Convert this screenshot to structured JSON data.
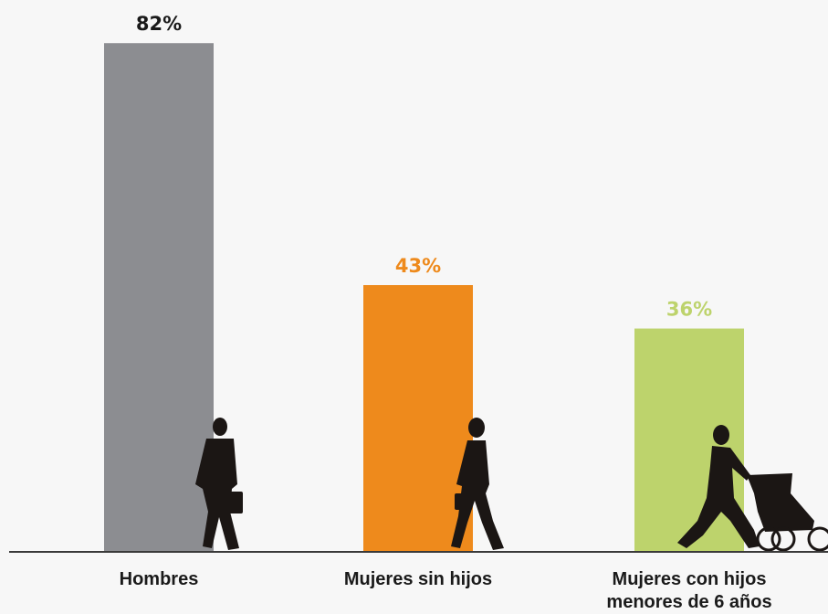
{
  "chart_data": {
    "type": "bar",
    "categories": [
      "Hombres",
      "Mujeres sin hijos",
      "Mujeres con hijos menores de 6 años"
    ],
    "values": [
      82,
      43,
      36
    ],
    "value_labels": [
      "82%",
      "43%",
      "36%"
    ],
    "colors": [
      "#8c8d91",
      "#ee8a1c",
      "#bdd36c"
    ],
    "value_label_colors": [
      "#1a1a1a",
      "#ee8a1c",
      "#bdd36c"
    ]
  }
}
